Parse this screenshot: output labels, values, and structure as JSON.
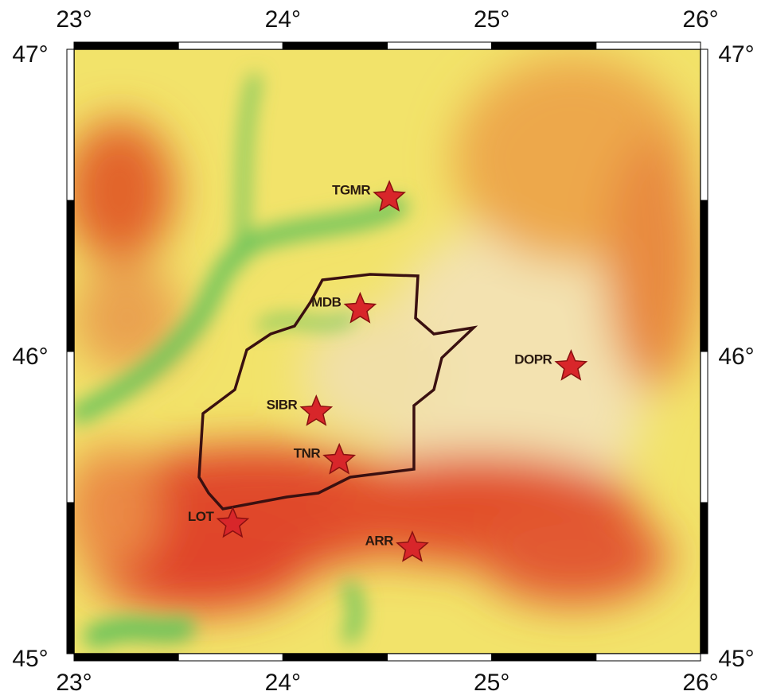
{
  "map": {
    "lonlim": [
      23,
      26
    ],
    "latlim": [
      45,
      47
    ],
    "lon_ticks": [
      {
        "value": 23,
        "label": "23°"
      },
      {
        "value": 24,
        "label": "24°"
      },
      {
        "value": 25,
        "label": "25°"
      },
      {
        "value": 26,
        "label": "26°"
      }
    ],
    "lat_ticks": [
      {
        "value": 47,
        "label": "47°"
      },
      {
        "value": 46,
        "label": "46°"
      },
      {
        "value": 45,
        "label": "45°"
      }
    ],
    "stations": [
      {
        "name": "TGMR",
        "lon": 24.51,
        "lat": 46.51
      },
      {
        "name": "MDB",
        "lon": 24.37,
        "lat": 46.14
      },
      {
        "name": "DOPR",
        "lon": 25.38,
        "lat": 45.95
      },
      {
        "name": "SIBR",
        "lon": 24.16,
        "lat": 45.8
      },
      {
        "name": "TNR",
        "lon": 24.27,
        "lat": 45.64
      },
      {
        "name": "LOT",
        "lon": 23.76,
        "lat": 45.43
      },
      {
        "name": "ARR",
        "lon": 24.62,
        "lat": 45.35
      }
    ]
  }
}
